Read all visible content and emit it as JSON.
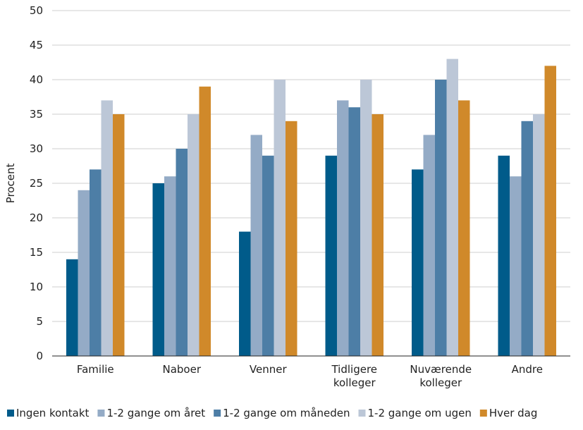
{
  "chart_data": {
    "type": "bar",
    "title": "",
    "xlabel": "",
    "ylabel": "Procent",
    "ylim": [
      0,
      50
    ],
    "yticks": [
      0,
      5,
      10,
      15,
      20,
      25,
      30,
      35,
      40,
      45,
      50
    ],
    "grid": true,
    "legend_position": "bottom",
    "categories": [
      [
        "Familie"
      ],
      [
        "Naboer"
      ],
      [
        "Venner"
      ],
      [
        "Tidligere",
        "kolleger"
      ],
      [
        "Nuværende",
        "kolleger"
      ],
      [
        "Andre"
      ]
    ],
    "series": [
      {
        "name": "Ingen kontakt",
        "color": "#005b8a",
        "values": [
          14,
          25,
          18,
          29,
          27,
          29
        ]
      },
      {
        "name": "1-2 gange om året",
        "color": "#94abc6",
        "values": [
          24,
          26,
          32,
          37,
          32,
          26
        ]
      },
      {
        "name": "1-2 gange om måneden",
        "color": "#4d7ea6",
        "values": [
          27,
          30,
          29,
          36,
          40,
          34
        ]
      },
      {
        "name": "1-2 gange om ugen",
        "color": "#bcc7d7",
        "values": [
          37,
          35,
          40,
          40,
          43,
          35
        ]
      },
      {
        "name": "Hver dag",
        "color": "#d0892a",
        "values": [
          35,
          39,
          34,
          35,
          37,
          42
        ]
      }
    ]
  }
}
